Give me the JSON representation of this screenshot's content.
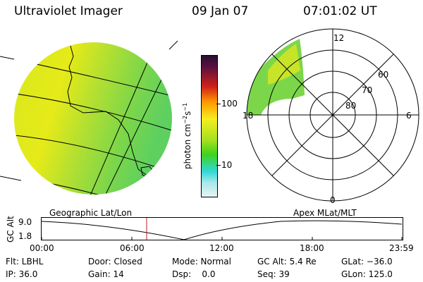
{
  "header": {
    "title": "Ultraviolet Imager",
    "date": "09 Jan 07",
    "time": "07:01:02 UT"
  },
  "colorbar": {
    "unit": "photon cm",
    "unit_exp1": "−2",
    "unit_mid": "s",
    "unit_exp2": "−1",
    "tick_100": "100",
    "tick_10": "10"
  },
  "polar_plot": {
    "mlt_labels": {
      "top": "12",
      "left": "18",
      "right": "6",
      "bottom": "0"
    },
    "lat_labels": [
      "60",
      "70",
      "80"
    ]
  },
  "timeline": {
    "left_label": "Geographic Lat/Lon",
    "right_label": "Apex MLat/MLT",
    "y_axis_label": "GC Alt",
    "y_ticks": [
      "9.0",
      "1.8"
    ],
    "x_ticks": [
      "00:00",
      "06:00",
      "12:00",
      "18:00",
      "23:59"
    ],
    "current_time_marker": "07:01"
  },
  "status": {
    "row1": [
      {
        "key": "flt",
        "text": "Flt: LBHL"
      },
      {
        "key": "door",
        "text": "Door: Closed"
      },
      {
        "key": "mode",
        "text": "Mode: Normal"
      },
      {
        "key": "gcalt",
        "text": "GC Alt: 5.4 Re"
      },
      {
        "key": "glat",
        "text": "GLat: −36.0"
      }
    ],
    "row2": [
      {
        "key": "ip",
        "text": "IP: 36.0"
      },
      {
        "key": "gain",
        "text": "Gain: 14"
      },
      {
        "key": "dsp",
        "text": "Dsp:    0.0"
      },
      {
        "key": "seq",
        "text": "Seq: 39"
      },
      {
        "key": "glon",
        "text": "GLon: 125.0"
      }
    ]
  },
  "colors": {
    "bar_top": "#2a1030",
    "bar_red": "#d0201a",
    "bar_orange": "#ff9a00",
    "bar_yellow": "#f4ee20",
    "bar_green": "#3fd21c",
    "bar_cyan": "#30d8d8",
    "bar_bottom": "#e8f4f4",
    "marker": "#c02020"
  }
}
